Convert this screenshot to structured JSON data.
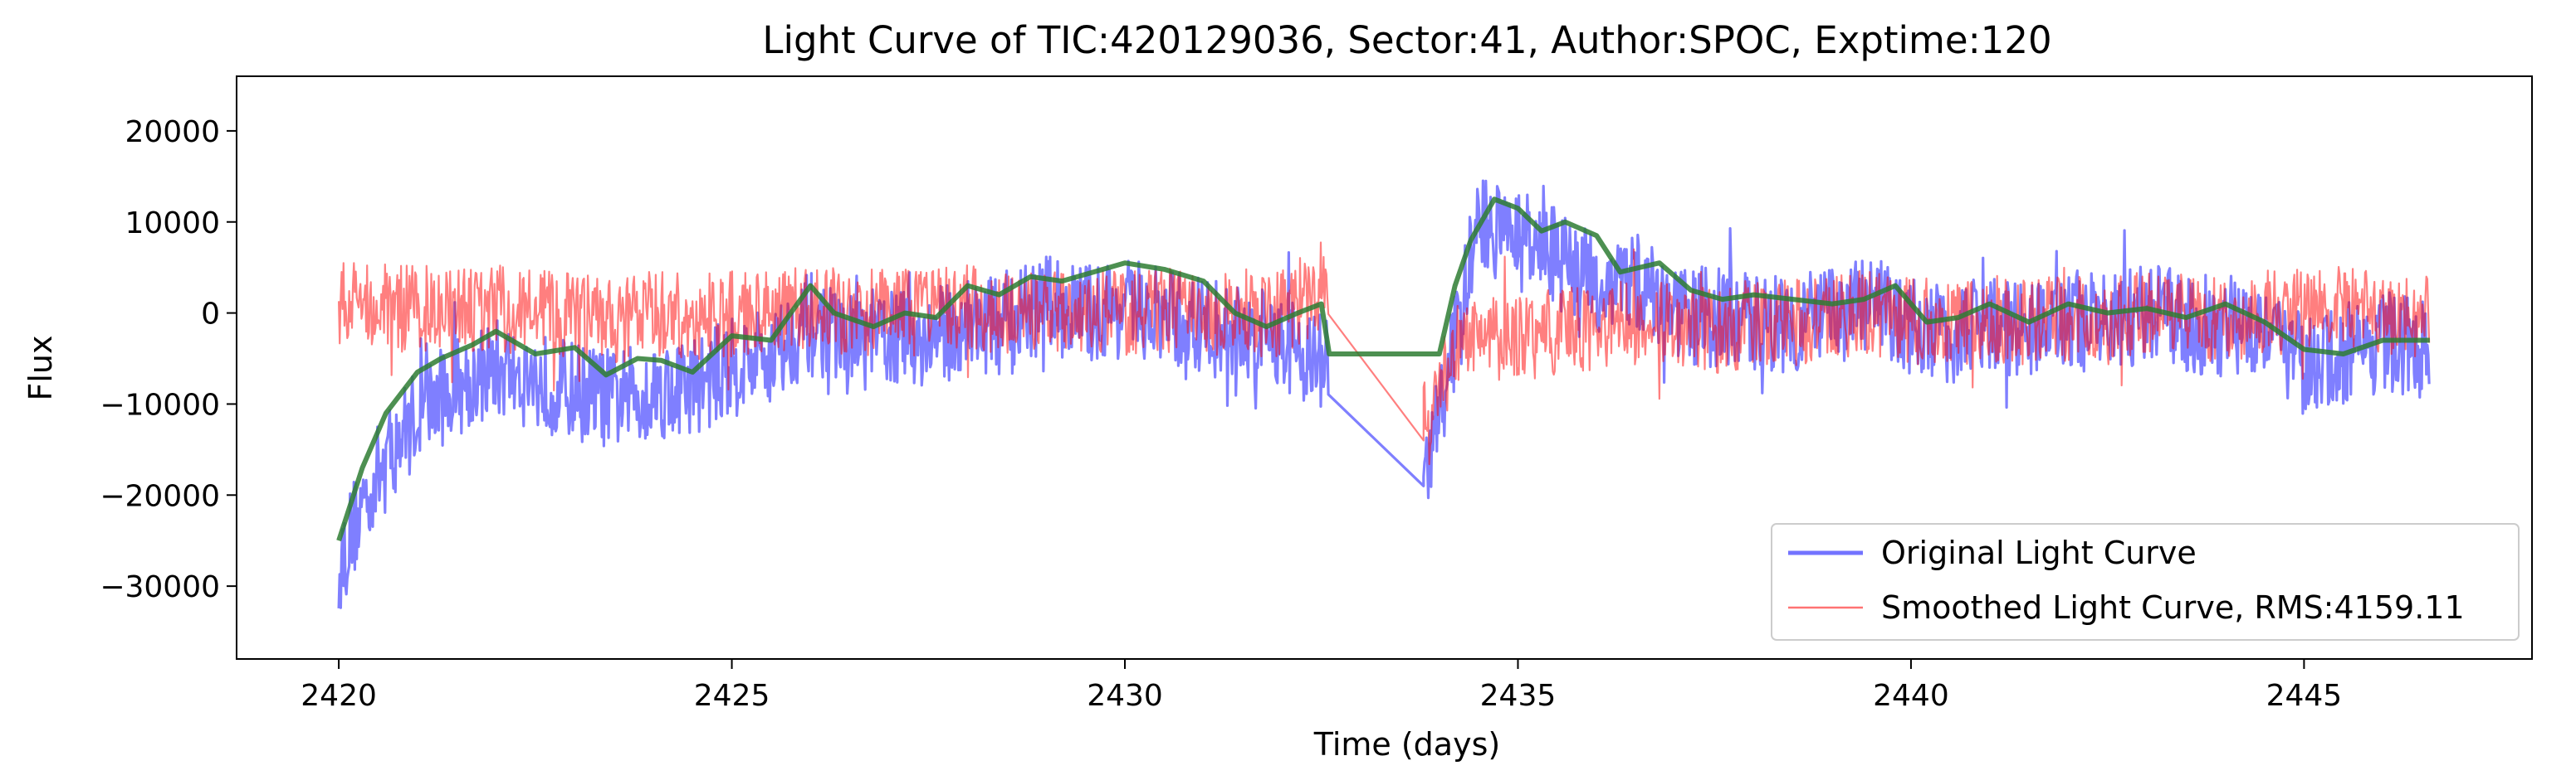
{
  "chart_data": {
    "type": "line",
    "title": "Light Curve of TIC:420129036, Sector:41, Author:SPOC, Exptime:120",
    "xlabel": "Time (days)",
    "ylabel": "Flux",
    "xlim": [
      2418.7,
      2447.9
    ],
    "ylim": [
      -38000,
      26000
    ],
    "xticks": [
      2420,
      2425,
      2430,
      2435,
      2440,
      2445
    ],
    "yticks": [
      -30000,
      -20000,
      -10000,
      0,
      10000,
      20000
    ],
    "grid": false,
    "legend_position": "lower-right",
    "colors": {
      "original": "#0000ff",
      "smoothed": "#ff0000",
      "trend": "#2e7d32"
    },
    "gap": [
      2432.6,
      2433.8
    ],
    "series": [
      {
        "name": "Original Light Curve",
        "description": "raw flux, high-frequency noise around trend",
        "noise_amplitude": 5500,
        "x": [
          2420.0,
          2420.3,
          2420.6,
          2421.0,
          2421.5,
          2422.0,
          2422.5,
          2423.0,
          2423.5,
          2424.0,
          2424.5,
          2425.0,
          2425.5,
          2426.0,
          2426.5,
          2427.0,
          2427.5,
          2428.0,
          2428.5,
          2429.0,
          2429.5,
          2430.0,
          2430.5,
          2431.0,
          2431.5,
          2432.0,
          2432.6,
          2433.8,
          2434.2,
          2434.5,
          2435.0,
          2435.5,
          2436.0,
          2436.5,
          2437.0,
          2437.5,
          2438.0,
          2438.5,
          2439.0,
          2439.5,
          2440.0,
          2440.5,
          2441.0,
          2441.5,
          2442.0,
          2442.5,
          2443.0,
          2443.5,
          2444.0,
          2444.5,
          2445.0,
          2445.5,
          2446.0,
          2446.6
        ],
        "y": [
          -28000,
          -21000,
          -16000,
          -11000,
          -8000,
          -6000,
          -7500,
          -8500,
          -9500,
          -8500,
          -8000,
          -6000,
          -4500,
          -1000,
          -3500,
          -2500,
          -3000,
          -1000,
          -1500,
          1000,
          0,
          500,
          -500,
          -1500,
          -2500,
          -3000,
          -6000,
          -19000,
          -3000,
          10000,
          8000,
          6000,
          3000,
          3500,
          0,
          -500,
          -1000,
          -1000,
          -500,
          1000,
          -1500,
          -2500,
          -1000,
          -2000,
          -500,
          -1500,
          0,
          -1000,
          -1500,
          -1000,
          -6000,
          -5000,
          -3000,
          -4000
        ]
      },
      {
        "name": "Smoothed Light Curve, RMS:4159.11",
        "description": "smoothed flux",
        "noise_amplitude": 4800,
        "x": [
          2420.0,
          2420.3,
          2420.6,
          2421.0,
          2421.5,
          2422.0,
          2422.5,
          2423.0,
          2423.5,
          2424.0,
          2424.5,
          2425.0,
          2425.5,
          2426.0,
          2426.5,
          2427.0,
          2427.5,
          2428.0,
          2428.5,
          2429.0,
          2429.5,
          2430.0,
          2430.5,
          2431.0,
          2431.5,
          2432.0,
          2432.6,
          2433.8,
          2434.2,
          2434.5,
          2435.0,
          2435.5,
          2436.0,
          2436.5,
          2437.0,
          2437.5,
          2438.0,
          2438.5,
          2439.0,
          2439.5,
          2440.0,
          2440.5,
          2441.0,
          2441.5,
          2442.0,
          2442.5,
          2443.0,
          2443.5,
          2444.0,
          2444.5,
          2445.0,
          2445.5,
          2446.0,
          2446.6
        ],
        "y": [
          1000,
          1500,
          1000,
          500,
          0,
          500,
          0,
          -500,
          -1000,
          0,
          -500,
          0,
          500,
          500,
          0,
          0,
          0,
          500,
          0,
          500,
          500,
          0,
          500,
          0,
          -500,
          0,
          2000,
          -14000,
          -3500,
          -3000,
          -3000,
          -2000,
          -1500,
          -1000,
          -1500,
          -2000,
          -1000,
          -1000,
          -500,
          0,
          -1000,
          -1000,
          -500,
          -1000,
          -500,
          -1000,
          0,
          -500,
          -500,
          0,
          0,
          500,
          0,
          0
        ]
      },
      {
        "name": "",
        "description": "trend line (green)",
        "x": [
          2420.0,
          2420.3,
          2420.6,
          2421.0,
          2421.3,
          2421.7,
          2422.0,
          2422.5,
          2423.0,
          2423.4,
          2423.8,
          2424.1,
          2424.5,
          2425.0,
          2425.5,
          2426.0,
          2426.3,
          2426.8,
          2427.2,
          2427.6,
          2428.0,
          2428.4,
          2428.8,
          2429.2,
          2429.6,
          2430.0,
          2430.5,
          2431.0,
          2431.4,
          2431.8,
          2432.2,
          2432.5,
          2432.6,
          2433.8,
          2434.0,
          2434.2,
          2434.4,
          2434.7,
          2435.0,
          2435.3,
          2435.6,
          2436.0,
          2436.3,
          2436.8,
          2437.2,
          2437.6,
          2438.0,
          2438.5,
          2439.0,
          2439.4,
          2439.8,
          2440.2,
          2440.6,
          2441.0,
          2441.5,
          2442.0,
          2442.5,
          2443.0,
          2443.5,
          2444.0,
          2444.5,
          2445.0,
          2445.5,
          2446.0,
          2446.6
        ],
        "y": [
          -25000,
          -17000,
          -11000,
          -6500,
          -5000,
          -3500,
          -2000,
          -4500,
          -3800,
          -6800,
          -5000,
          -5200,
          -6500,
          -2500,
          -3000,
          3000,
          0,
          -1500,
          0,
          -500,
          3000,
          2000,
          4000,
          3500,
          4500,
          5500,
          4800,
          3500,
          0,
          -1500,
          0,
          1000,
          -4500,
          -4500,
          -4500,
          3000,
          8000,
          12500,
          11500,
          9000,
          10000,
          8500,
          4500,
          5500,
          2500,
          1500,
          2000,
          1500,
          1000,
          1500,
          3000,
          -1000,
          -500,
          1000,
          -1000,
          1000,
          0,
          500,
          -500,
          1000,
          -1000,
          -4000,
          -4500,
          -3000,
          -3000
        ]
      }
    ]
  }
}
